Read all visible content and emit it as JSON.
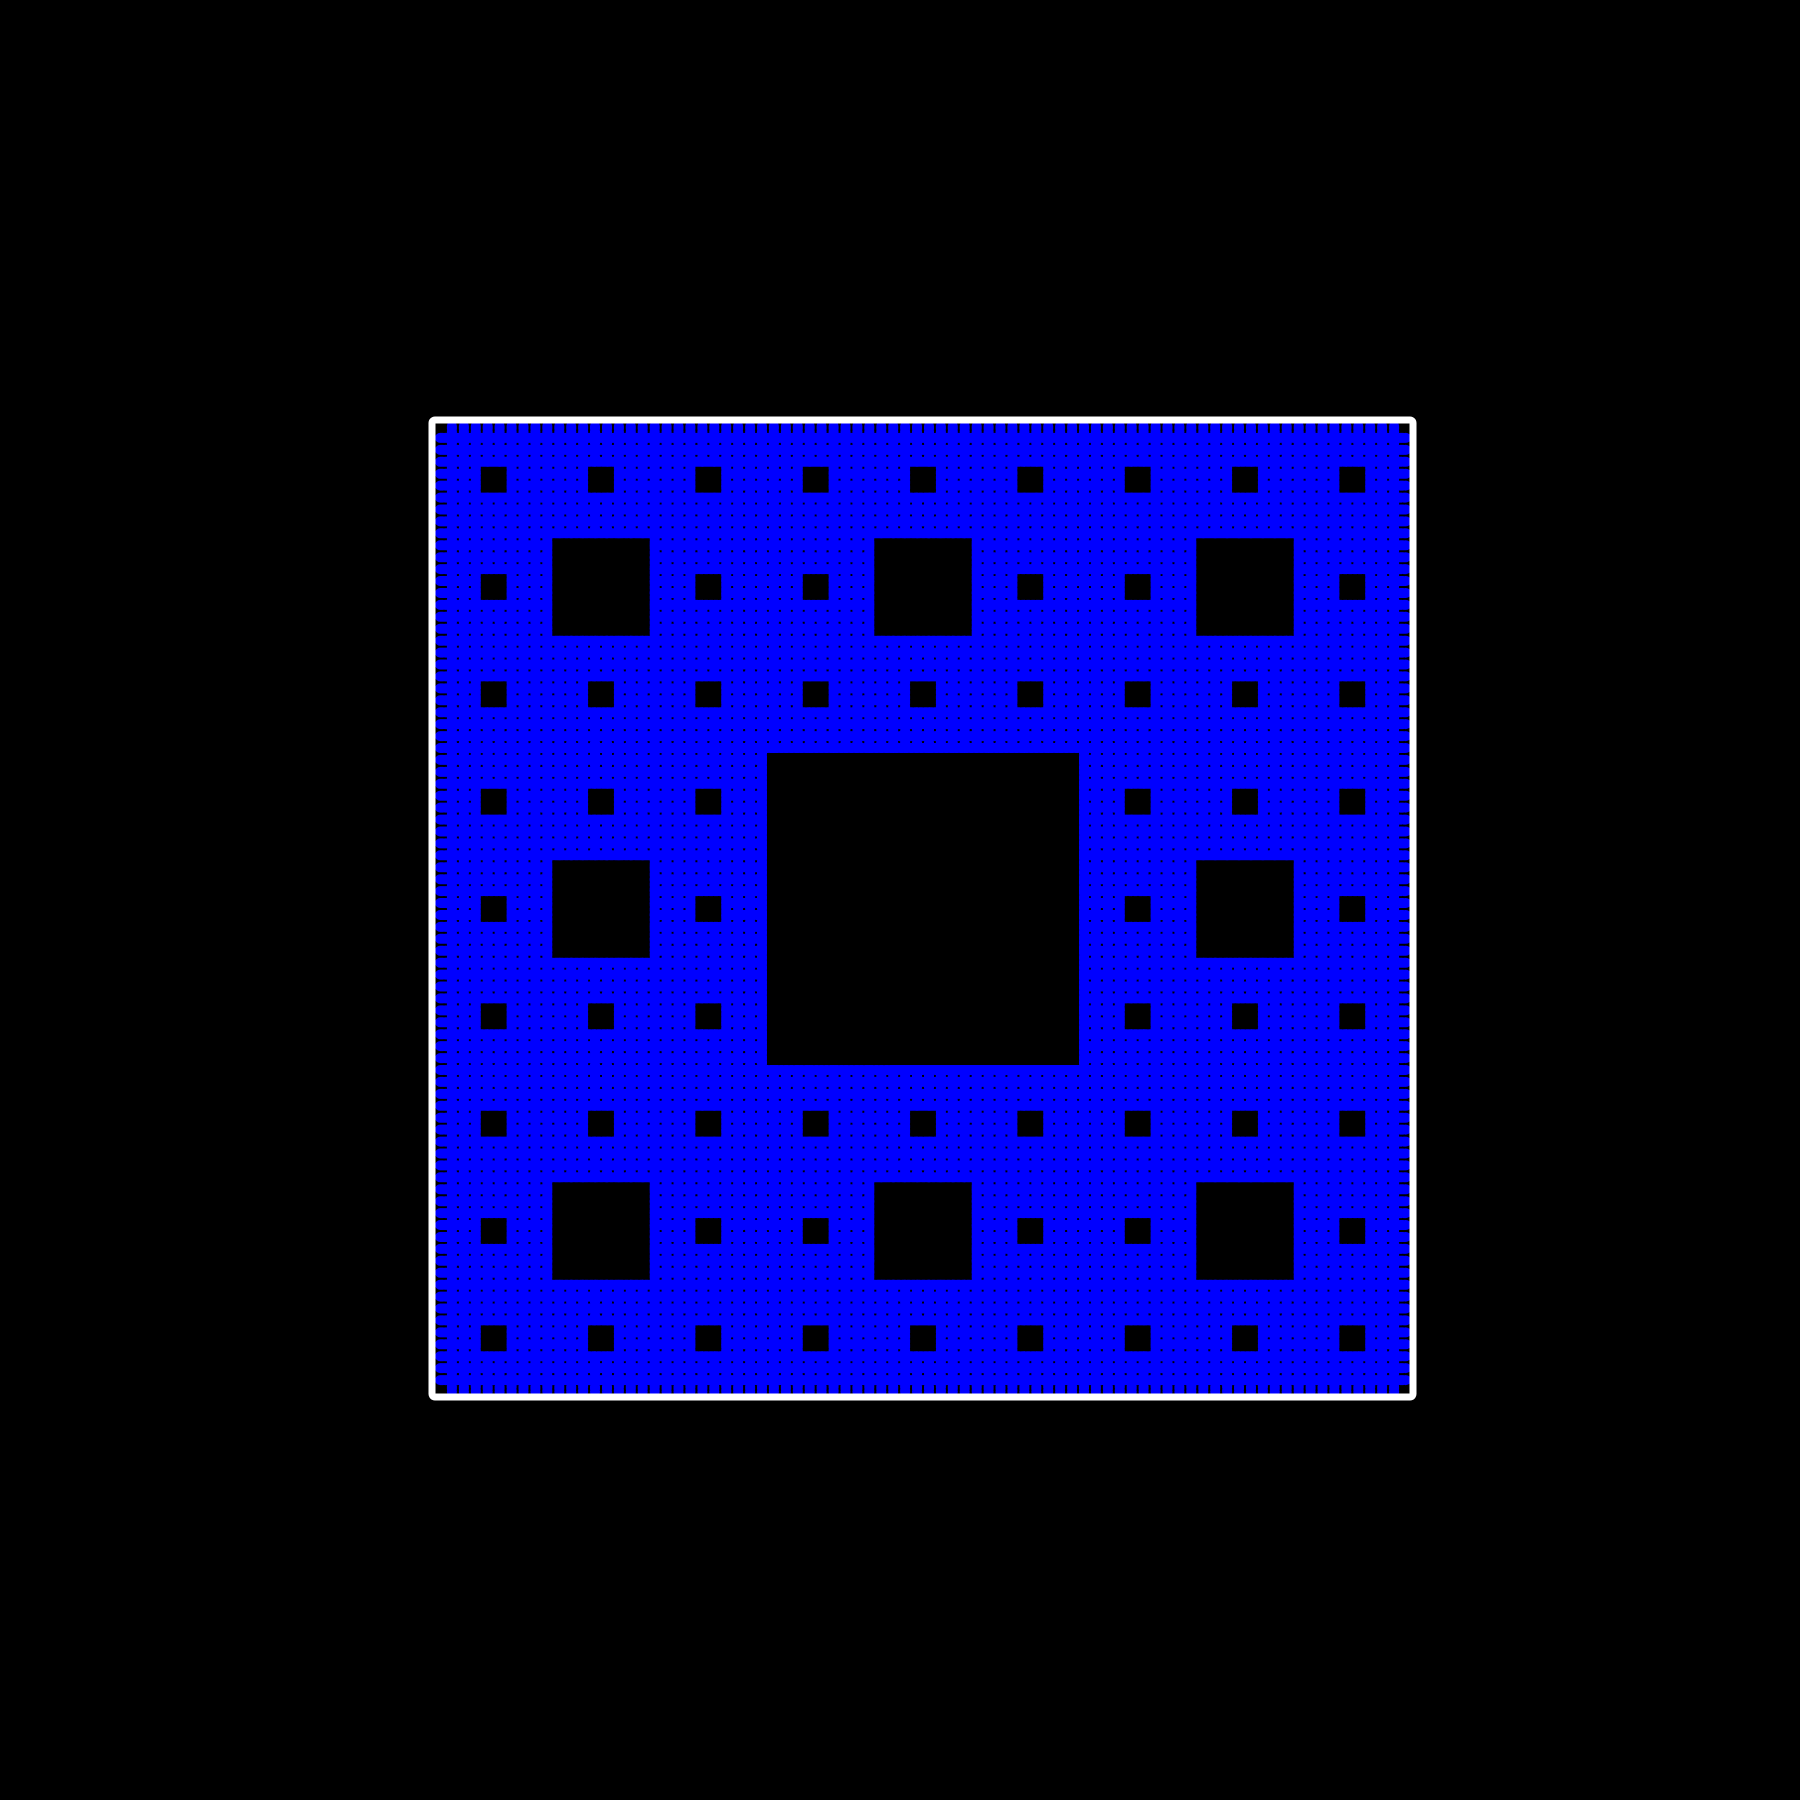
{
  "colors": {
    "background": "#000000",
    "frame": "#ffffff",
    "fractal": "#0000ff"
  },
  "fractal": {
    "shape": "square cross fractal",
    "depth": 4
  }
}
